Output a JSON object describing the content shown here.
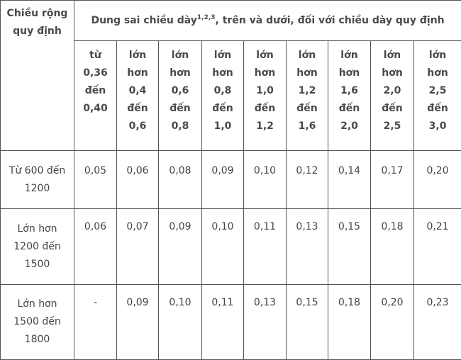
{
  "table": {
    "corner_header": [
      "Chiều rộng",
      "quy định"
    ],
    "group_header": {
      "prefix": "Dung sai chiều dày",
      "superscript": "1,2,3",
      "suffix": ", trên và dưới, đối với chiều dày quy định"
    },
    "column_headers": [
      [
        "từ",
        "0,36",
        "đến",
        "0,40"
      ],
      [
        "lớn",
        "hơn",
        "0,4",
        "đến",
        "0,6"
      ],
      [
        "lớn",
        "hơn",
        "0,6",
        "đến",
        "0,8"
      ],
      [
        "lớn",
        "hơn",
        "0,8",
        "đến",
        "1,0"
      ],
      [
        "lớn",
        "hơn",
        "1,0",
        "đến",
        "1,2"
      ],
      [
        "lớn",
        "hơn",
        "1,2",
        "đến",
        "1,6"
      ],
      [
        "lớn",
        "hơn",
        "1,6",
        "đến",
        "2,0"
      ],
      [
        "lớn",
        "hơn",
        "2,0",
        "đến",
        "2,5"
      ],
      [
        "lớn",
        "hơn",
        "2,5 đến",
        "3,0"
      ]
    ],
    "rows": [
      {
        "label": [
          "Từ 600 đến",
          "1200"
        ],
        "values": [
          "0,05",
          "0,06",
          "0,08",
          "0,09",
          "0,10",
          "0,12",
          "0,14",
          "0,17",
          "0,20"
        ]
      },
      {
        "label": [
          "Lớn hơn",
          "1200 đến",
          "1500"
        ],
        "values": [
          "0,06",
          "0,07",
          "0,09",
          "0,10",
          "0,11",
          "0,13",
          "0,15",
          "0,18",
          "0,21"
        ]
      },
      {
        "label": [
          "Lớn hơn",
          "1500 đến",
          "1800"
        ],
        "values": [
          "-",
          "0,09",
          "0,10",
          "0,11",
          "0,13",
          "0,15",
          "0,18",
          "0,20",
          "0,23"
        ]
      }
    ]
  }
}
